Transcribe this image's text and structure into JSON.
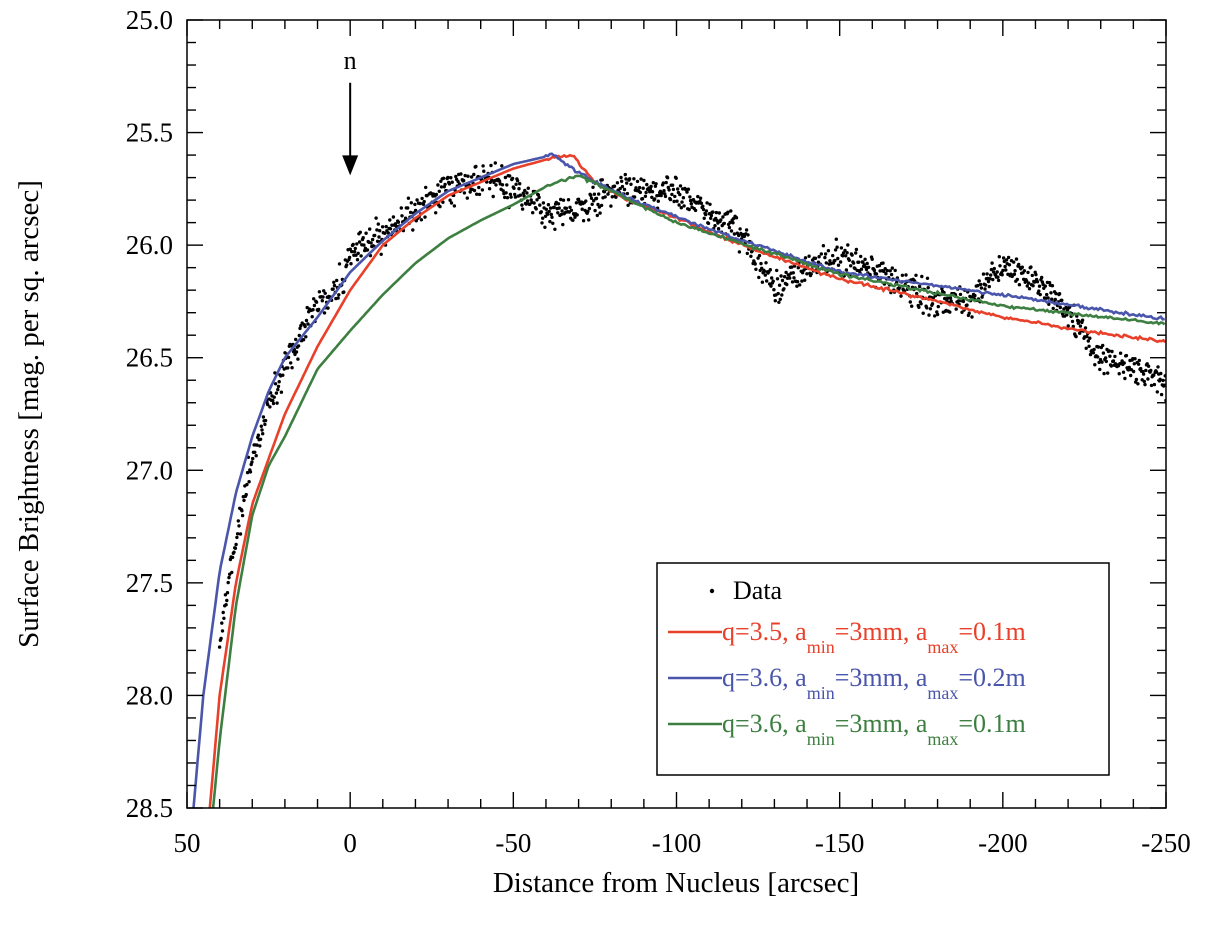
{
  "chart_data": {
    "type": "line",
    "title": "",
    "xlabel": "Distance from Nucleus [arcsec]",
    "ylabel": "Surface Brightness [mag. per sq. arcsec]",
    "xlim": [
      50,
      -250
    ],
    "ylim": [
      28.5,
      25.0
    ],
    "y_inverted": true,
    "x_reversed": true,
    "x_ticks": [
      50,
      0,
      -50,
      -100,
      -150,
      -200,
      -250
    ],
    "x_tick_labels": [
      "50",
      "0",
      "-50",
      "-100",
      "-150",
      "-200",
      "-250"
    ],
    "y_ticks": [
      25.0,
      25.5,
      26.0,
      26.5,
      27.0,
      27.5,
      28.0,
      28.5
    ],
    "y_tick_labels": [
      "25.0",
      "25.5",
      "26.0",
      "26.5",
      "27.0",
      "27.5",
      "28.0",
      "28.5"
    ],
    "grid": false,
    "legend_position": "bottom-right",
    "annotation": {
      "text": "n",
      "x": 0,
      "y_text": 25.27,
      "y_arrow_tip": 25.69
    },
    "series": [
      {
        "name": "Data",
        "kind": "scatter",
        "color": "#000000",
        "x": [
          40,
          35,
          30,
          25,
          20,
          15,
          10,
          5,
          2,
          0,
          -5,
          -10,
          -20,
          -30,
          -40,
          -50,
          -60,
          -70,
          -80,
          -90,
          -100,
          -110,
          -120,
          -130,
          -140,
          -150,
          -160,
          -170,
          -180,
          -190,
          -200,
          -210,
          -220,
          -230,
          -240,
          -250
        ],
        "y": [
          27.75,
          27.3,
          26.95,
          26.7,
          26.55,
          26.4,
          26.25,
          26.2,
          26.15,
          26.05,
          26.0,
          25.95,
          25.85,
          25.75,
          25.7,
          25.75,
          25.85,
          25.85,
          25.75,
          25.75,
          25.75,
          25.85,
          25.95,
          26.2,
          26.1,
          26.05,
          26.1,
          26.2,
          26.25,
          26.25,
          26.1,
          26.15,
          26.3,
          26.5,
          26.55,
          26.6
        ],
        "scatter_spread": 0.12
      },
      {
        "name": "q=3.5, a_min=3mm, a_max=0.1m",
        "kind": "line",
        "color": "#e8402a",
        "x": [
          43,
          40,
          35,
          30,
          25,
          20,
          10,
          0,
          -10,
          -20,
          -30,
          -40,
          -50,
          -60,
          -68,
          -75,
          -85,
          -100,
          -120,
          -150,
          -180,
          -200,
          -220,
          -250
        ],
        "y": [
          28.5,
          28.0,
          27.5,
          27.15,
          26.95,
          26.75,
          26.45,
          26.2,
          26.0,
          25.88,
          25.78,
          25.72,
          25.66,
          25.62,
          25.6,
          25.72,
          25.8,
          25.88,
          26.0,
          26.15,
          26.25,
          26.32,
          26.37,
          26.43
        ]
      },
      {
        "name": "q=3.6, a_min=3mm, a_max=0.2m",
        "kind": "line",
        "color": "#4a56ab",
        "x": [
          48,
          45,
          40,
          35,
          30,
          25,
          20,
          10,
          0,
          -10,
          -20,
          -30,
          -40,
          -50,
          -62,
          -68,
          -75,
          -90,
          -110,
          -150,
          -200,
          -250
        ],
        "y": [
          28.5,
          28.0,
          27.45,
          27.1,
          26.85,
          26.65,
          26.5,
          26.32,
          26.12,
          25.98,
          25.86,
          25.76,
          25.7,
          25.64,
          25.6,
          25.66,
          25.72,
          25.82,
          25.93,
          26.12,
          26.22,
          26.33
        ]
      },
      {
        "name": "q=3.6, a_min=3mm, a_max=0.1m",
        "kind": "line",
        "color": "#3d7f40",
        "x": [
          42,
          40,
          35,
          30,
          25,
          20,
          10,
          0,
          -10,
          -20,
          -30,
          -40,
          -50,
          -60,
          -70,
          -80,
          -100,
          -150,
          -200,
          -250
        ],
        "y": [
          28.5,
          28.2,
          27.6,
          27.2,
          26.98,
          26.85,
          26.55,
          26.38,
          26.22,
          26.08,
          25.97,
          25.89,
          25.82,
          25.74,
          25.69,
          25.76,
          25.9,
          26.13,
          26.27,
          26.35
        ]
      }
    ],
    "legend_entries": [
      {
        "kind": "marker",
        "color": "#000000",
        "text": "Data"
      },
      {
        "kind": "line",
        "color": "#e8402a",
        "p1": "q=3.5, a",
        "s1": "min",
        "p2": "=3mm, a",
        "s2": "max",
        "p3": "=0.1m"
      },
      {
        "kind": "line",
        "color": "#4a56ab",
        "p1": "q=3.6, a",
        "s1": "min",
        "p2": "=3mm, a",
        "s2": "max",
        "p3": "=0.2m"
      },
      {
        "kind": "line",
        "color": "#3d7f40",
        "p1": "q=3.6, a",
        "s1": "min",
        "p2": "=3mm, a",
        "s2": "max",
        "p3": "=0.1m"
      }
    ]
  }
}
